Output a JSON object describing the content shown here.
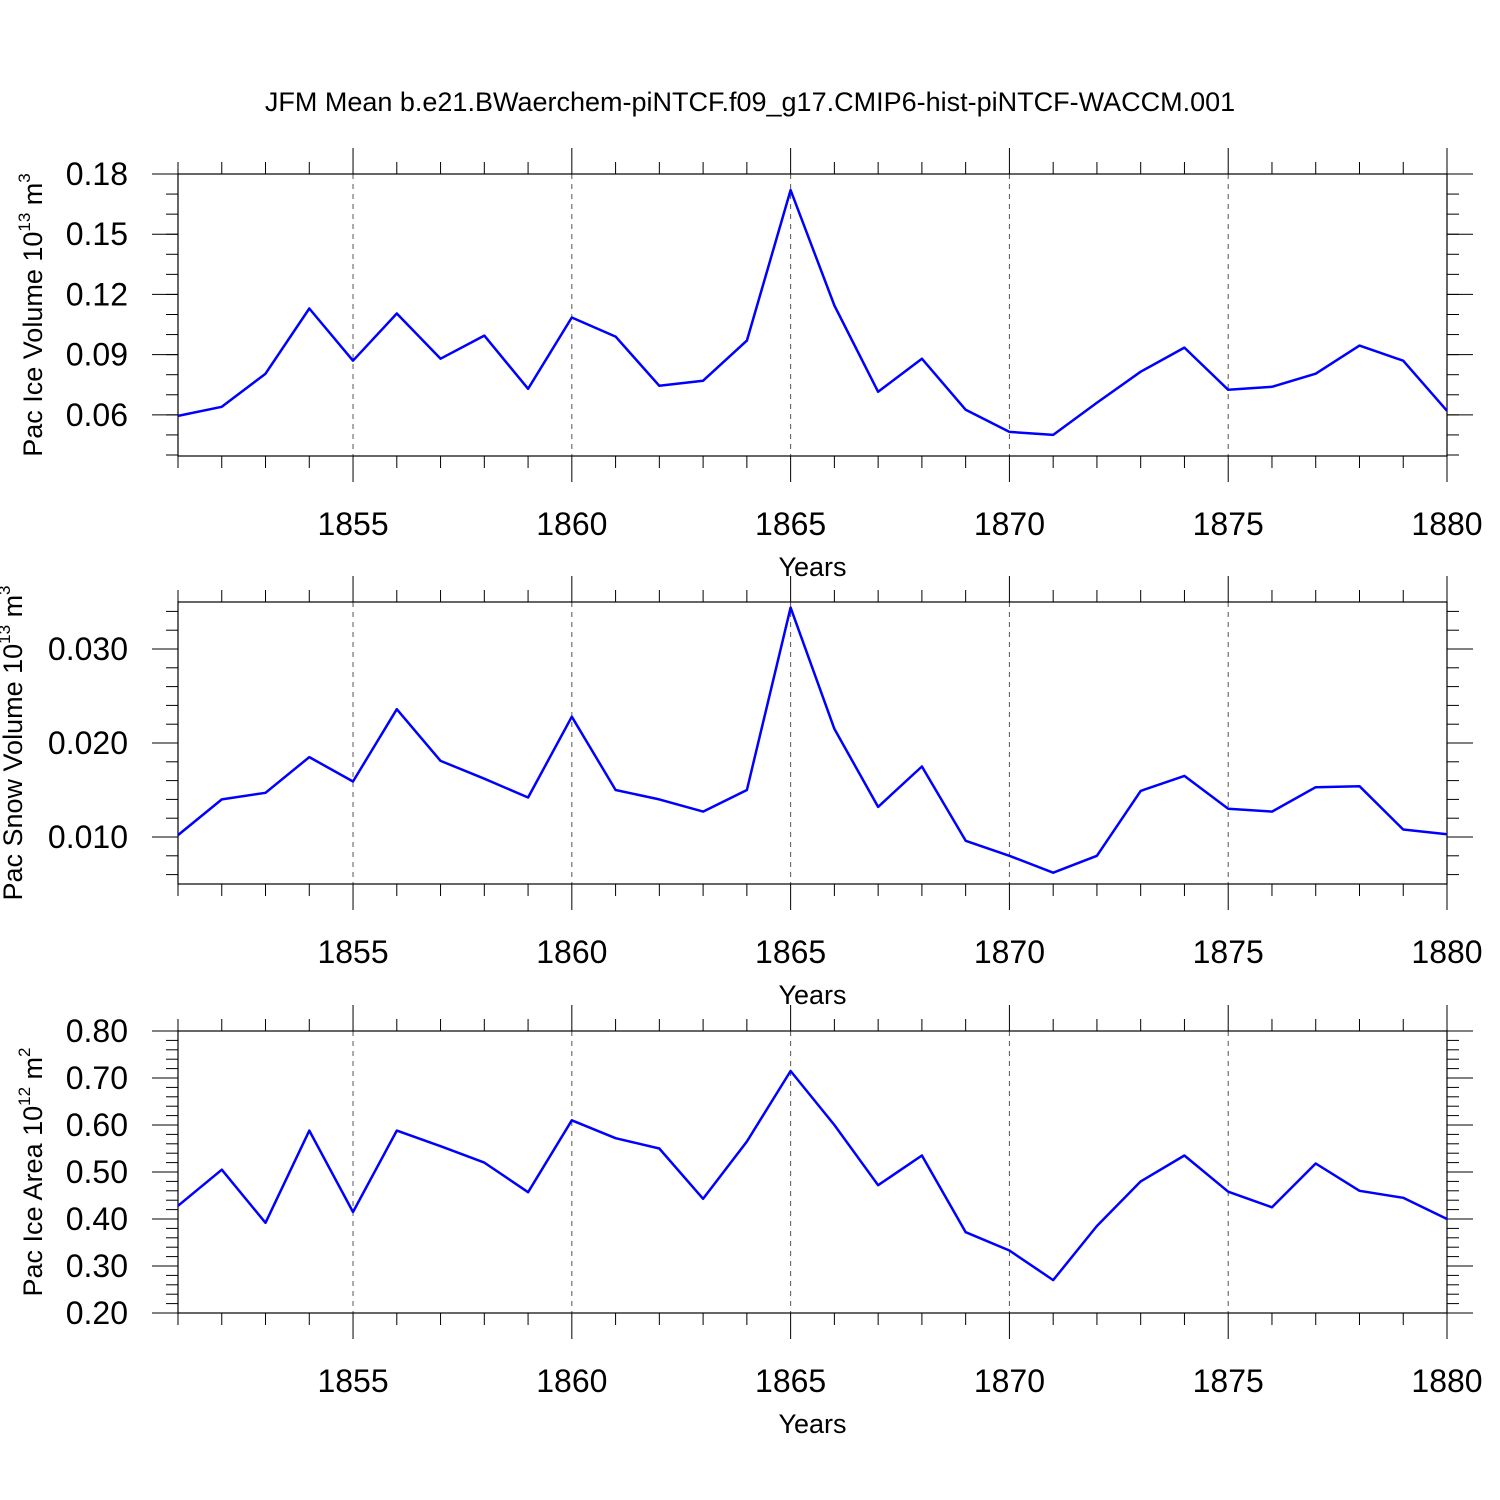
{
  "title": "JFM Mean b.e21.BWaerchem-piNTCF.f09_g17.CMIP6-hist-piNTCF-WACCM.001",
  "line_color": "#0000ff",
  "chart_data": [
    {
      "type": "line",
      "ylabel": "Pac Ice Volume 10",
      "ylabel_exp": "13",
      "ylabel_unit": " m",
      "ylabel_unit_exp": "3",
      "xlabel": "Years",
      "xlim": [
        1851,
        1880
      ],
      "ylim": [
        0.0395,
        0.18
      ],
      "yticks": [
        0.06,
        0.09,
        0.12,
        0.15,
        0.18
      ],
      "ytick_labels": [
        "0.06",
        "0.09",
        "0.12",
        "0.15",
        "0.18"
      ],
      "yminor": 0.01,
      "xticks": [
        1855,
        1860,
        1865,
        1870,
        1875,
        1880
      ],
      "xtick_labels": [
        "1855",
        "1860",
        "1865",
        "1870",
        "1875",
        "1880"
      ],
      "x": [
        1851,
        1852,
        1853,
        1854,
        1855,
        1856,
        1857,
        1858,
        1859,
        1860,
        1861,
        1862,
        1863,
        1864,
        1865,
        1866,
        1867,
        1868,
        1869,
        1870,
        1871,
        1872,
        1873,
        1874,
        1875,
        1876,
        1877,
        1878,
        1879,
        1880
      ],
      "values": [
        0.0595,
        0.064,
        0.0805,
        0.113,
        0.087,
        0.1105,
        0.088,
        0.0995,
        0.073,
        0.1085,
        0.099,
        0.0745,
        0.077,
        0.097,
        0.172,
        0.1145,
        0.0715,
        0.088,
        0.0625,
        0.0515,
        0.05,
        0.066,
        0.0815,
        0.0935,
        0.0725,
        0.074,
        0.0805,
        0.0945,
        0.087,
        0.062
      ]
    },
    {
      "type": "line",
      "ylabel": "Pac Snow Volume 10",
      "ylabel_exp": "13",
      "ylabel_unit": " m",
      "ylabel_unit_exp": "3",
      "xlabel": "Years",
      "xlim": [
        1851,
        1880
      ],
      "ylim": [
        0.005,
        0.035
      ],
      "yticks": [
        0.01,
        0.02,
        0.03
      ],
      "ytick_labels": [
        "0.010",
        "0.020",
        "0.030"
      ],
      "yminor": 0.002,
      "xticks": [
        1855,
        1860,
        1865,
        1870,
        1875,
        1880
      ],
      "xtick_labels": [
        "1855",
        "1860",
        "1865",
        "1870",
        "1875",
        "1880"
      ],
      "x": [
        1851,
        1852,
        1853,
        1854,
        1855,
        1856,
        1857,
        1858,
        1859,
        1860,
        1861,
        1862,
        1863,
        1864,
        1865,
        1866,
        1867,
        1868,
        1869,
        1870,
        1871,
        1872,
        1873,
        1874,
        1875,
        1876,
        1877,
        1878,
        1879,
        1880
      ],
      "values": [
        0.0102,
        0.014,
        0.0147,
        0.0185,
        0.0159,
        0.0236,
        0.0181,
        0.0162,
        0.0142,
        0.0228,
        0.015,
        0.014,
        0.0127,
        0.015,
        0.0344,
        0.0215,
        0.0132,
        0.0175,
        0.0096,
        0.008,
        0.0062,
        0.008,
        0.0149,
        0.0165,
        0.013,
        0.0127,
        0.0153,
        0.0154,
        0.0108,
        0.0103
      ]
    },
    {
      "type": "line",
      "ylabel": "Pac Ice Area 10",
      "ylabel_exp": "12",
      "ylabel_unit": " m",
      "ylabel_unit_exp": "2",
      "xlabel": "Years",
      "xlim": [
        1851,
        1880
      ],
      "ylim": [
        0.2,
        0.8
      ],
      "yticks": [
        0.2,
        0.3,
        0.4,
        0.5,
        0.6,
        0.7,
        0.8
      ],
      "ytick_labels": [
        "0.20",
        "0.30",
        "0.40",
        "0.50",
        "0.60",
        "0.70",
        "0.80"
      ],
      "yminor": 0.02,
      "xticks": [
        1855,
        1860,
        1865,
        1870,
        1875,
        1880
      ],
      "xtick_labels": [
        "1855",
        "1860",
        "1865",
        "1870",
        "1875",
        "1880"
      ],
      "x": [
        1851,
        1852,
        1853,
        1854,
        1855,
        1856,
        1857,
        1858,
        1859,
        1860,
        1861,
        1862,
        1863,
        1864,
        1865,
        1866,
        1867,
        1868,
        1869,
        1870,
        1871,
        1872,
        1873,
        1874,
        1875,
        1876,
        1877,
        1878,
        1879,
        1880
      ],
      "values": [
        0.428,
        0.505,
        0.392,
        0.588,
        0.415,
        0.588,
        0.555,
        0.52,
        0.457,
        0.61,
        0.572,
        0.55,
        0.443,
        0.565,
        0.715,
        0.6,
        0.472,
        0.535,
        0.372,
        0.333,
        0.27,
        0.385,
        0.48,
        0.535,
        0.458,
        0.425,
        0.518,
        0.46,
        0.445,
        0.4
      ]
    }
  ]
}
